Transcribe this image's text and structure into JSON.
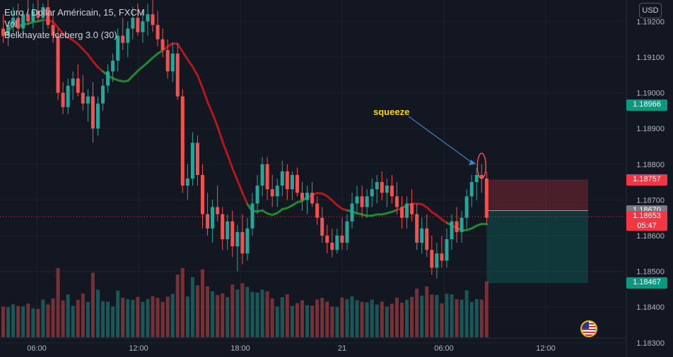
{
  "legend": {
    "title": "Euro / Dollar Américain, 15, FXCM",
    "vol": "Vol",
    "indicator": "Belkhayate Iceberg 3.0 (30)"
  },
  "currency_button": "USD",
  "annotation": "squeeze",
  "price_tags": [
    {
      "value": "1.18966",
      "color": "#089981"
    },
    {
      "value": "1.18757",
      "color": "#f23645"
    },
    {
      "value": "1.18670",
      "color": "#787b86"
    },
    {
      "value": "1.18653",
      "sub": "05:47",
      "color": "#f23645"
    },
    {
      "value": "1.18467",
      "color": "#089981"
    }
  ],
  "colors": {
    "background": "#131722",
    "up": "#26a69a",
    "down": "#ef5350",
    "ma_red": "#b2181b",
    "ma_green": "#1f8a2e",
    "grid": "#1e222d",
    "axis_text": "#b2b5be",
    "annotation_arrow": "#3b82c4"
  },
  "icons": [
    "us-flag-icon"
  ],
  "chart_data": {
    "type": "candlestick",
    "title": "Euro / Dollar Américain, 15, FXCM",
    "y_ticks": [
      "1.18300",
      "1.18400",
      "1.18500",
      "1.18600",
      "1.18700",
      "1.18800",
      "1.18900",
      "1.19000",
      "1.19100",
      "1.19200"
    ],
    "ylim": [
      1.1826,
      1.1926
    ],
    "x_ticks": [
      "06:00",
      "12:00",
      "18:00",
      "21",
      "06:00",
      "12:00"
    ],
    "current_price": 1.18653,
    "countdown": "05:47",
    "position_entry": 1.1867,
    "stop_loss": 1.18757,
    "take_profit": 1.18467,
    "squeeze_marker_price": 1.18795,
    "series": [
      {
        "name": "Euro / Dollar Américain",
        "values": [
          {
            "o": 1.1918,
            "h": 1.1922,
            "l": 1.1914,
            "c": 1.1916
          },
          {
            "o": 1.1916,
            "h": 1.192,
            "l": 1.1913,
            "c": 1.1919
          },
          {
            "o": 1.1919,
            "h": 1.1924,
            "l": 1.1917,
            "c": 1.1921
          },
          {
            "o": 1.1921,
            "h": 1.1925,
            "l": 1.1917,
            "c": 1.1918
          },
          {
            "o": 1.1918,
            "h": 1.1923,
            "l": 1.1916,
            "c": 1.1922
          },
          {
            "o": 1.1922,
            "h": 1.1926,
            "l": 1.1919,
            "c": 1.192
          },
          {
            "o": 1.192,
            "h": 1.1925,
            "l": 1.1918,
            "c": 1.1923
          },
          {
            "o": 1.1923,
            "h": 1.1926,
            "l": 1.192,
            "c": 1.1921
          },
          {
            "o": 1.1921,
            "h": 1.1925,
            "l": 1.1917,
            "c": 1.1924
          },
          {
            "o": 1.1924,
            "h": 1.1926,
            "l": 1.1918,
            "c": 1.1919
          },
          {
            "o": 1.1919,
            "h": 1.1923,
            "l": 1.1914,
            "c": 1.1916
          },
          {
            "o": 1.1916,
            "h": 1.1918,
            "l": 1.1898,
            "c": 1.19
          },
          {
            "o": 1.19,
            "h": 1.1903,
            "l": 1.1894,
            "c": 1.1896
          },
          {
            "o": 1.1896,
            "h": 1.1904,
            "l": 1.1894,
            "c": 1.1902
          },
          {
            "o": 1.1902,
            "h": 1.1906,
            "l": 1.1898,
            "c": 1.1904
          },
          {
            "o": 1.1904,
            "h": 1.1908,
            "l": 1.1899,
            "c": 1.19
          },
          {
            "o": 1.19,
            "h": 1.1905,
            "l": 1.1895,
            "c": 1.1897
          },
          {
            "o": 1.1897,
            "h": 1.1901,
            "l": 1.1892,
            "c": 1.1899
          },
          {
            "o": 1.1899,
            "h": 1.1903,
            "l": 1.1886,
            "c": 1.189
          },
          {
            "o": 1.189,
            "h": 1.1899,
            "l": 1.1888,
            "c": 1.1897
          },
          {
            "o": 1.1897,
            "h": 1.1904,
            "l": 1.1895,
            "c": 1.1902
          },
          {
            "o": 1.1902,
            "h": 1.1908,
            "l": 1.19,
            "c": 1.1906
          },
          {
            "o": 1.1906,
            "h": 1.1911,
            "l": 1.1903,
            "c": 1.1909
          },
          {
            "o": 1.1909,
            "h": 1.1918,
            "l": 1.1906,
            "c": 1.1916
          },
          {
            "o": 1.1916,
            "h": 1.1921,
            "l": 1.1912,
            "c": 1.1914
          },
          {
            "o": 1.1914,
            "h": 1.192,
            "l": 1.191,
            "c": 1.1918
          },
          {
            "o": 1.1918,
            "h": 1.1924,
            "l": 1.1915,
            "c": 1.1921
          },
          {
            "o": 1.1921,
            "h": 1.1925,
            "l": 1.1916,
            "c": 1.1917
          },
          {
            "o": 1.1917,
            "h": 1.1923,
            "l": 1.1914,
            "c": 1.192
          },
          {
            "o": 1.192,
            "h": 1.1925,
            "l": 1.1916,
            "c": 1.1922
          },
          {
            "o": 1.1922,
            "h": 1.1926,
            "l": 1.1917,
            "c": 1.1919
          },
          {
            "o": 1.1919,
            "h": 1.1923,
            "l": 1.1913,
            "c": 1.1915
          },
          {
            "o": 1.1915,
            "h": 1.1918,
            "l": 1.191,
            "c": 1.1912
          },
          {
            "o": 1.1912,
            "h": 1.1915,
            "l": 1.1904,
            "c": 1.1906
          },
          {
            "o": 1.1906,
            "h": 1.1914,
            "l": 1.1903,
            "c": 1.1911
          },
          {
            "o": 1.1911,
            "h": 1.1914,
            "l": 1.1898,
            "c": 1.1899
          },
          {
            "o": 1.1899,
            "h": 1.1901,
            "l": 1.1872,
            "c": 1.1874
          },
          {
            "o": 1.1874,
            "h": 1.188,
            "l": 1.187,
            "c": 1.1876
          },
          {
            "o": 1.1876,
            "h": 1.1889,
            "l": 1.1874,
            "c": 1.1886
          },
          {
            "o": 1.1886,
            "h": 1.1888,
            "l": 1.1874,
            "c": 1.1877
          },
          {
            "o": 1.1877,
            "h": 1.188,
            "l": 1.1862,
            "c": 1.1866
          },
          {
            "o": 1.1866,
            "h": 1.1872,
            "l": 1.186,
            "c": 1.1862
          },
          {
            "o": 1.1862,
            "h": 1.187,
            "l": 1.1858,
            "c": 1.1868
          },
          {
            "o": 1.1868,
            "h": 1.1874,
            "l": 1.1864,
            "c": 1.1866
          },
          {
            "o": 1.1866,
            "h": 1.1868,
            "l": 1.1856,
            "c": 1.1859
          },
          {
            "o": 1.1859,
            "h": 1.1866,
            "l": 1.1856,
            "c": 1.1864
          },
          {
            "o": 1.1864,
            "h": 1.1867,
            "l": 1.1854,
            "c": 1.1857
          },
          {
            "o": 1.1857,
            "h": 1.1863,
            "l": 1.185,
            "c": 1.1861
          },
          {
            "o": 1.1861,
            "h": 1.1866,
            "l": 1.1852,
            "c": 1.1855
          },
          {
            "o": 1.1855,
            "h": 1.1865,
            "l": 1.1853,
            "c": 1.1862
          },
          {
            "o": 1.1862,
            "h": 1.1872,
            "l": 1.186,
            "c": 1.1869
          },
          {
            "o": 1.1869,
            "h": 1.1877,
            "l": 1.1866,
            "c": 1.1874
          },
          {
            "o": 1.1874,
            "h": 1.1882,
            "l": 1.1871,
            "c": 1.188
          },
          {
            "o": 1.188,
            "h": 1.1882,
            "l": 1.187,
            "c": 1.1873
          },
          {
            "o": 1.1873,
            "h": 1.1877,
            "l": 1.1868,
            "c": 1.1871
          },
          {
            "o": 1.1871,
            "h": 1.1876,
            "l": 1.1868,
            "c": 1.1874
          },
          {
            "o": 1.1874,
            "h": 1.1881,
            "l": 1.1871,
            "c": 1.1878
          },
          {
            "o": 1.1878,
            "h": 1.188,
            "l": 1.187,
            "c": 1.1873
          },
          {
            "o": 1.1873,
            "h": 1.1878,
            "l": 1.187,
            "c": 1.1877
          },
          {
            "o": 1.1877,
            "h": 1.1879,
            "l": 1.1871,
            "c": 1.1872
          },
          {
            "o": 1.1872,
            "h": 1.1875,
            "l": 1.1867,
            "c": 1.187
          },
          {
            "o": 1.187,
            "h": 1.1874,
            "l": 1.1866,
            "c": 1.1872
          },
          {
            "o": 1.1872,
            "h": 1.1875,
            "l": 1.1868,
            "c": 1.1869
          },
          {
            "o": 1.1869,
            "h": 1.1871,
            "l": 1.1863,
            "c": 1.1865
          },
          {
            "o": 1.1865,
            "h": 1.1868,
            "l": 1.1858,
            "c": 1.186
          },
          {
            "o": 1.186,
            "h": 1.1863,
            "l": 1.1855,
            "c": 1.1858
          },
          {
            "o": 1.1858,
            "h": 1.1862,
            "l": 1.1854,
            "c": 1.1856
          },
          {
            "o": 1.1856,
            "h": 1.1862,
            "l": 1.1855,
            "c": 1.186
          },
          {
            "o": 1.186,
            "h": 1.1865,
            "l": 1.1856,
            "c": 1.1858
          },
          {
            "o": 1.1858,
            "h": 1.1866,
            "l": 1.1856,
            "c": 1.1864
          },
          {
            "o": 1.1864,
            "h": 1.1872,
            "l": 1.1862,
            "c": 1.1869
          },
          {
            "o": 1.1869,
            "h": 1.1874,
            "l": 1.1866,
            "c": 1.1871
          },
          {
            "o": 1.1871,
            "h": 1.1874,
            "l": 1.1865,
            "c": 1.1868
          },
          {
            "o": 1.1868,
            "h": 1.1873,
            "l": 1.1865,
            "c": 1.1871
          },
          {
            "o": 1.1871,
            "h": 1.1876,
            "l": 1.1868,
            "c": 1.1873
          },
          {
            "o": 1.1873,
            "h": 1.1877,
            "l": 1.1869,
            "c": 1.1875
          },
          {
            "o": 1.1875,
            "h": 1.1878,
            "l": 1.187,
            "c": 1.1872
          },
          {
            "o": 1.1872,
            "h": 1.1876,
            "l": 1.1868,
            "c": 1.1874
          },
          {
            "o": 1.1874,
            "h": 1.1877,
            "l": 1.1869,
            "c": 1.1871
          },
          {
            "o": 1.1871,
            "h": 1.1875,
            "l": 1.1866,
            "c": 1.1868
          },
          {
            "o": 1.1868,
            "h": 1.1871,
            "l": 1.1862,
            "c": 1.1865
          },
          {
            "o": 1.1865,
            "h": 1.1871,
            "l": 1.1862,
            "c": 1.1869
          },
          {
            "o": 1.1869,
            "h": 1.1873,
            "l": 1.1864,
            "c": 1.1866
          },
          {
            "o": 1.1866,
            "h": 1.1869,
            "l": 1.1856,
            "c": 1.1858
          },
          {
            "o": 1.1858,
            "h": 1.1865,
            "l": 1.1855,
            "c": 1.1862
          },
          {
            "o": 1.1862,
            "h": 1.1866,
            "l": 1.1854,
            "c": 1.1856
          },
          {
            "o": 1.1856,
            "h": 1.186,
            "l": 1.1849,
            "c": 1.1851
          },
          {
            "o": 1.1851,
            "h": 1.1858,
            "l": 1.1848,
            "c": 1.1855
          },
          {
            "o": 1.1855,
            "h": 1.186,
            "l": 1.1851,
            "c": 1.1853
          },
          {
            "o": 1.1853,
            "h": 1.1862,
            "l": 1.1851,
            "c": 1.1859
          },
          {
            "o": 1.1859,
            "h": 1.1866,
            "l": 1.1856,
            "c": 1.1864
          },
          {
            "o": 1.1864,
            "h": 1.1868,
            "l": 1.1858,
            "c": 1.1861
          },
          {
            "o": 1.1861,
            "h": 1.1867,
            "l": 1.1858,
            "c": 1.1865
          },
          {
            "o": 1.1865,
            "h": 1.1873,
            "l": 1.1862,
            "c": 1.1871
          },
          {
            "o": 1.1871,
            "h": 1.1877,
            "l": 1.1868,
            "c": 1.1875
          },
          {
            "o": 1.1875,
            "h": 1.1879,
            "l": 1.187,
            "c": 1.1877
          },
          {
            "o": 1.1877,
            "h": 1.188,
            "l": 1.1872,
            "c": 1.1876
          },
          {
            "o": 1.1876,
            "h": 1.1878,
            "l": 1.1863,
            "c": 1.1865
          }
        ]
      }
    ]
  }
}
